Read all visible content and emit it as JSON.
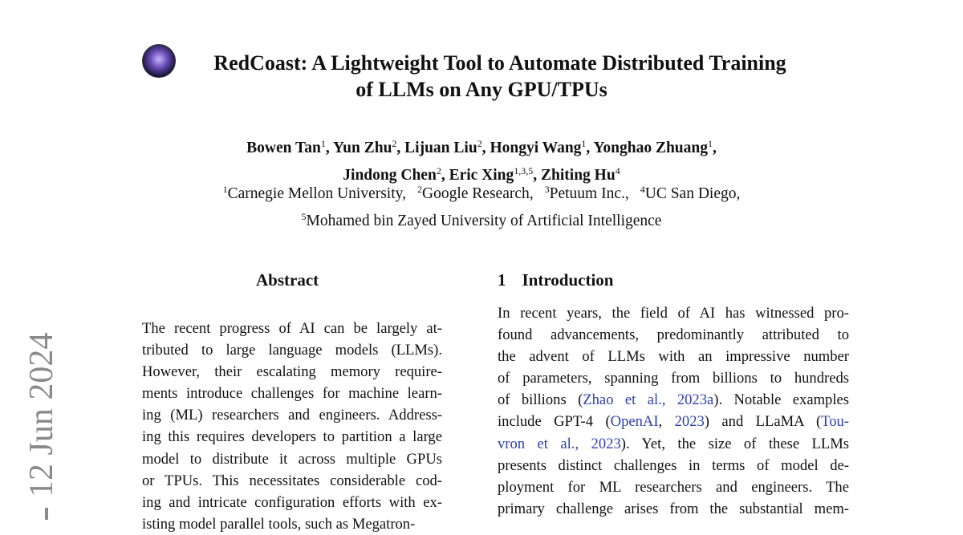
{
  "title": {
    "line1": "RedCoast: A Lightweight Tool to Automate Distributed Training",
    "line2": "of LLMs on Any GPU/TPUs",
    "logo_icon": "redcoast-logo"
  },
  "authors": {
    "line1": [
      [
        "Bowen Tan",
        "1"
      ],
      [
        "Yun Zhu",
        "2"
      ],
      [
        "Lijuan Liu",
        "2"
      ],
      [
        "Hongyi Wang",
        "1"
      ],
      [
        "Yonghao Zhuang",
        "1"
      ]
    ],
    "line2": [
      [
        "Jindong Chen",
        "2"
      ],
      [
        "Eric Xing",
        "1,3,5"
      ],
      [
        "Zhiting Hu",
        "4"
      ]
    ]
  },
  "affiliations": {
    "line1": [
      [
        "1",
        "Carnegie Mellon University,"
      ],
      [
        "2",
        "Google Research,"
      ],
      [
        "3",
        "Petuum Inc.,"
      ],
      [
        "4",
        "UC San Diego,"
      ]
    ],
    "line2": [
      [
        "5",
        "Mohamed bin Zayed University of Artificial Intelligence"
      ]
    ]
  },
  "abstract": {
    "heading": "Abstract",
    "lines": [
      "The recent progress of AI can be largely at-",
      "tributed to large language models (LLMs).",
      "However, their escalating memory require-",
      "ments introduce challenges for machine learn-",
      "ing (ML) researchers and engineers. Address-",
      "ing this requires developers to partition a large",
      "model to distribute it across multiple GPUs",
      "or TPUs.  This necessitates considerable cod-",
      "ing and intricate configuration efforts with ex-",
      "isting model parallel tools, such as Megatron-"
    ]
  },
  "intro": {
    "heading_number": "1",
    "heading": "Introduction",
    "lines": [
      [
        {
          "t": "In recent years, the field of AI has witnessed pro-"
        }
      ],
      [
        {
          "t": "found advancements, predominantly attributed to"
        }
      ],
      [
        {
          "t": "the advent of LLMs with an impressive number"
        }
      ],
      [
        {
          "t": "of parameters, spanning from billions to hundreds"
        }
      ],
      [
        {
          "t": "of billions ("
        },
        {
          "t": "Zhao et al., 2023a",
          "link": true
        },
        {
          "t": "). Notable examples"
        }
      ],
      [
        {
          "t": "include GPT-4 ("
        },
        {
          "t": "OpenAI",
          "link": true
        },
        {
          "t": ", "
        },
        {
          "t": "2023",
          "link": true
        },
        {
          "t": ") and LLaMA ("
        },
        {
          "t": "Tou-",
          "link": true
        }
      ],
      [
        {
          "t": "vron et al., 2023",
          "link": true
        },
        {
          "t": ").  Yet, the size of these LLMs"
        }
      ],
      [
        {
          "t": "presents distinct challenges in terms of model de-"
        }
      ],
      [
        {
          "t": "ployment for ML researchers and engineers. The"
        }
      ],
      [
        {
          "t": "primary challenge arises from the substantial mem-"
        }
      ]
    ]
  },
  "arxiv_stamp": "12 Jun 2024",
  "colors": {
    "link": "#2b3fb0",
    "stamp": "#8a8a8a"
  }
}
